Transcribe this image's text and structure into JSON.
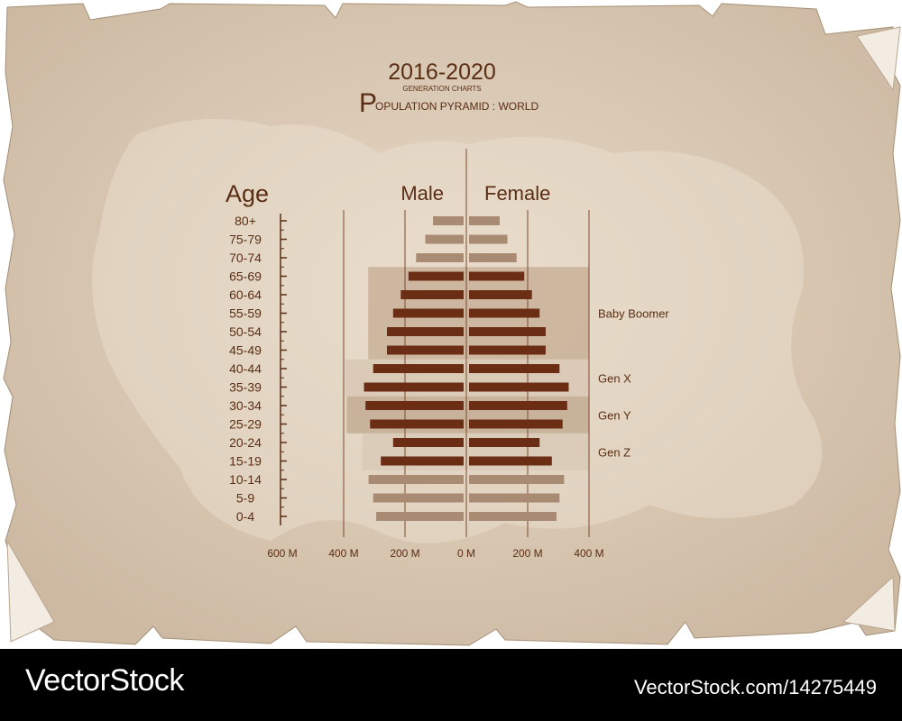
{
  "header": {
    "title": "2016-2020",
    "subtitle": "GENERATION CHARTS",
    "heading_initial": "P",
    "heading_rest": "OPULATION PYRAMID : WORLD"
  },
  "chart_data": {
    "type": "bar",
    "orientation": "horizontal-pyramid",
    "categories": [
      "80+",
      "75-79",
      "70-74",
      "65-69",
      "60-64",
      "55-59",
      "50-54",
      "45-49",
      "40-44",
      "35-39",
      "30-34",
      "25-29",
      "20-24",
      "15-19",
      "10-14",
      "5-9",
      "0-4"
    ],
    "series": [
      {
        "name": "Male",
        "values": [
          100,
          125,
          155,
          180,
          205,
          230,
          250,
          250,
          295,
          325,
          320,
          305,
          230,
          270,
          310,
          295,
          285
        ]
      },
      {
        "name": "Female",
        "values": [
          100,
          125,
          155,
          180,
          205,
          230,
          250,
          250,
          295,
          325,
          320,
          305,
          230,
          270,
          310,
          295,
          285
        ]
      }
    ],
    "ylabel": "Age",
    "male_label": "Male",
    "female_label": "Female",
    "xlim": [
      -600,
      400
    ],
    "x_ticks": [
      "600 M",
      "400 M",
      "200 M",
      "0 M",
      "200 M",
      "400 M"
    ],
    "grid": true,
    "generations": [
      {
        "label": "Baby Boomer",
        "ages": [
          "65-69",
          "45-49"
        ]
      },
      {
        "label": "Gen X",
        "ages": [
          "40-44",
          "35-39"
        ]
      },
      {
        "label": "Gen Y",
        "ages": [
          "30-34",
          "25-29"
        ]
      },
      {
        "label": "Gen Z",
        "ages": [
          "20-24",
          "15-19"
        ]
      }
    ],
    "colors": {
      "highlight_bar": "#6b2d14",
      "muted_bar": "#a98a73",
      "text": "#5a2e14",
      "grid": "#7a4a2c",
      "parchment": "#d9c8b2"
    }
  },
  "footer": {
    "left_text": "VectorStock",
    "right_text": "VectorStock.com/14275449"
  }
}
